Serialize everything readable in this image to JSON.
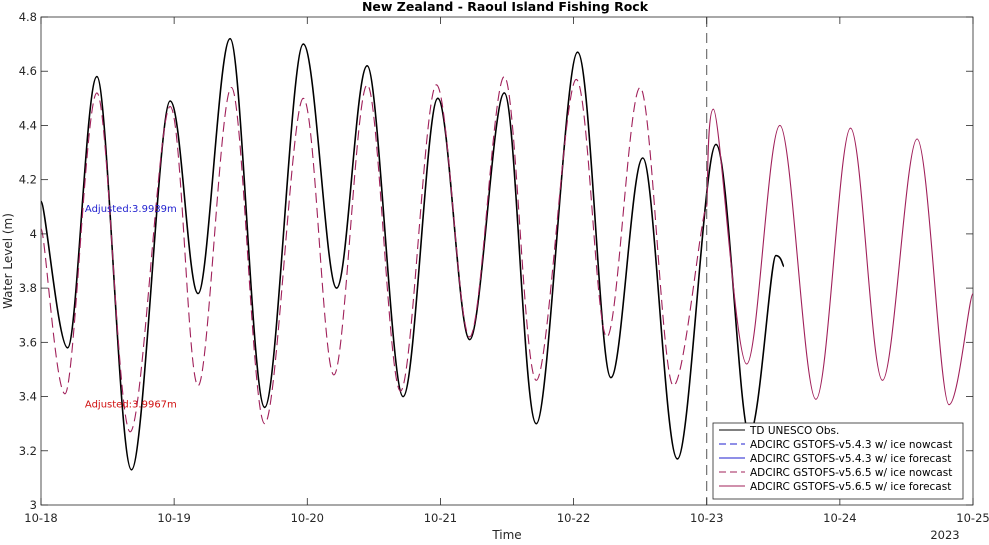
{
  "chart_data": {
    "type": "line",
    "title": "New Zealand - Raoul Island Fishing Rock",
    "xlabel": "Time",
    "ylabel": "Water Level (m)",
    "x_range": [
      "10-18",
      "10-25"
    ],
    "ylim": [
      3,
      4.8
    ],
    "x_ticks": [
      {
        "day": 0,
        "label": "10-18"
      },
      {
        "day": 1,
        "label": "10-19"
      },
      {
        "day": 2,
        "label": "10-20"
      },
      {
        "day": 3,
        "label": "10-21"
      },
      {
        "day": 4,
        "label": "10-22"
      },
      {
        "day": 5,
        "label": "10-23"
      },
      {
        "day": 6,
        "label": "10-24"
      },
      {
        "day": 7,
        "label": "10-25"
      }
    ],
    "year_label": "2023",
    "y_ticks": [
      3,
      3.2,
      3.4,
      3.6,
      3.8,
      4,
      4.2,
      4.4,
      4.6,
      4.8
    ],
    "grid": false,
    "forecast_start_line": "10-23",
    "annotations": [
      {
        "text": "Adjusted:3.9939m",
        "color": "#1f1fcf",
        "day": 0.33,
        "y": 4.08
      },
      {
        "text": "Adjusted:3.9967m",
        "color": "#d01010",
        "day": 0.33,
        "y": 3.36
      }
    ],
    "legend": {
      "placement": "bottom-right",
      "entries": [
        {
          "name": "TD UNESCO Obs.",
          "color": "#000000",
          "dash": "solid"
        },
        {
          "name": "ADCIRC GSTOFS-v5.4.3 w/ ice nowcast",
          "color": "#1f1fcf",
          "dash": "dashed"
        },
        {
          "name": "ADCIRC GSTOFS-v5.4.3 w/ ice forecast",
          "color": "#1f1fcf",
          "dash": "solid"
        },
        {
          "name": "ADCIRC GSTOFS-v5.6.5 w/ ice nowcast",
          "color": "#a0205a",
          "dash": "dashed"
        },
        {
          "name": "ADCIRC GSTOFS-v5.6.5 w/ ice forecast",
          "color": "#a0205a",
          "dash": "solid"
        }
      ]
    },
    "series": [
      {
        "name": "TD UNESCO Obs.",
        "color": "#000000",
        "dash": "solid",
        "points": [
          [
            0.0,
            4.12
          ],
          [
            0.2,
            3.58
          ],
          [
            0.42,
            4.58
          ],
          [
            0.68,
            3.13
          ],
          [
            0.97,
            4.49
          ],
          [
            1.18,
            3.78
          ],
          [
            1.42,
            4.72
          ],
          [
            1.68,
            3.36
          ],
          [
            1.97,
            4.7
          ],
          [
            2.22,
            3.8
          ],
          [
            2.45,
            4.62
          ],
          [
            2.72,
            3.4
          ],
          [
            2.98,
            4.5
          ],
          [
            3.22,
            3.61
          ],
          [
            3.48,
            4.52
          ],
          [
            3.72,
            3.3
          ],
          [
            4.03,
            4.67
          ],
          [
            4.28,
            3.47
          ],
          [
            4.52,
            4.28
          ],
          [
            4.78,
            3.17
          ],
          [
            5.07,
            4.33
          ],
          [
            5.32,
            3.26
          ],
          [
            5.52,
            3.92
          ],
          [
            5.58,
            3.88
          ]
        ]
      },
      {
        "name": "ADCIRC GSTOFS-v5.6.5 w/ ice nowcast",
        "color": "#a0205a",
        "dash": "dashed",
        "points": [
          [
            0.0,
            4.02
          ],
          [
            0.18,
            3.41
          ],
          [
            0.42,
            4.52
          ],
          [
            0.67,
            3.27
          ],
          [
            0.97,
            4.47
          ],
          [
            1.18,
            3.44
          ],
          [
            1.43,
            4.54
          ],
          [
            1.68,
            3.3
          ],
          [
            1.97,
            4.5
          ],
          [
            2.2,
            3.48
          ],
          [
            2.45,
            4.55
          ],
          [
            2.7,
            3.42
          ],
          [
            2.97,
            4.55
          ],
          [
            3.22,
            3.62
          ],
          [
            3.48,
            4.58
          ],
          [
            3.72,
            3.46
          ],
          [
            4.02,
            4.57
          ],
          [
            4.25,
            3.62
          ],
          [
            4.5,
            4.54
          ],
          [
            4.75,
            3.44
          ],
          [
            5.0,
            4.1
          ]
        ]
      },
      {
        "name": "ADCIRC GSTOFS-v5.6.5 w/ ice forecast",
        "color": "#a0205a",
        "dash": "solid",
        "points": [
          [
            5.0,
            4.1
          ],
          [
            5.05,
            4.46
          ],
          [
            5.3,
            3.52
          ],
          [
            5.55,
            4.4
          ],
          [
            5.82,
            3.39
          ],
          [
            6.08,
            4.39
          ],
          [
            6.32,
            3.46
          ],
          [
            6.58,
            4.35
          ],
          [
            6.82,
            3.37
          ],
          [
            7.0,
            3.78
          ]
        ]
      }
    ]
  }
}
